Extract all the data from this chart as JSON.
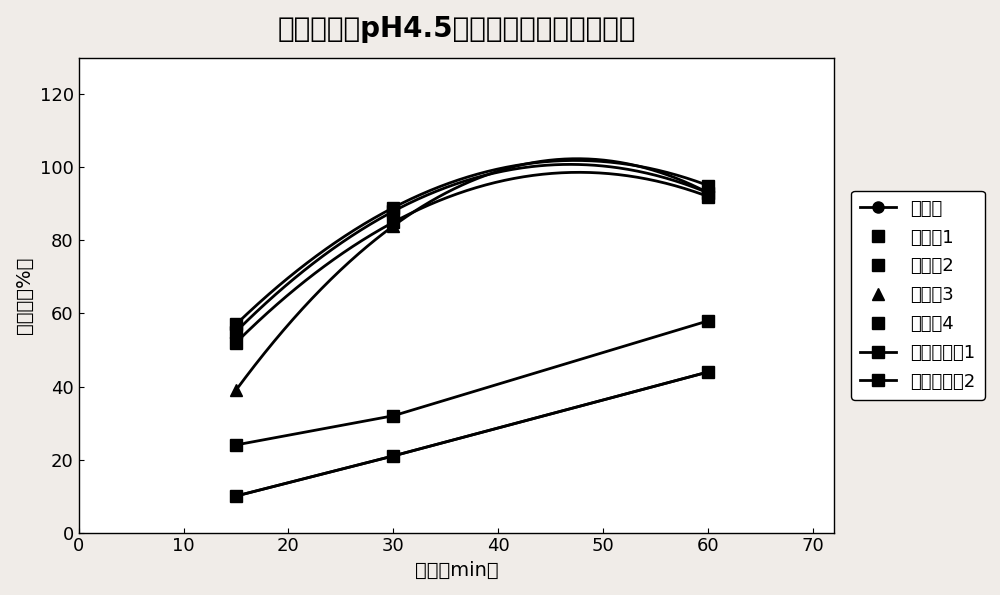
{
  "title": "各实施例在pH4.5醋酸盐介质中溶出度对比",
  "xlabel": "时间（min）",
  "ylabel": "溶出量（%）",
  "xlim": [
    0,
    72
  ],
  "ylim": [
    0,
    130
  ],
  "xticks": [
    0,
    10,
    20,
    30,
    40,
    50,
    60,
    70
  ],
  "yticks": [
    0,
    20,
    40,
    60,
    80,
    100,
    120
  ],
  "series": [
    {
      "label": "原料药",
      "x": [
        15,
        30,
        60
      ],
      "y": [
        10,
        21,
        44
      ],
      "marker": "o",
      "color": "#000000",
      "linestyle": "-"
    },
    {
      "label": "实施例1",
      "x": [
        15,
        30,
        60
      ],
      "y": [
        55,
        88,
        93
      ],
      "marker": "s",
      "color": "#000000",
      "linestyle": "-"
    },
    {
      "label": "实施例2",
      "x": [
        15,
        30,
        60
      ],
      "y": [
        52,
        85,
        92
      ],
      "marker": "s",
      "color": "#000000",
      "linestyle": "-"
    },
    {
      "label": "实施例3",
      "x": [
        15,
        30,
        60
      ],
      "y": [
        39,
        84,
        93
      ],
      "marker": "^",
      "color": "#000000",
      "linestyle": "-"
    },
    {
      "label": "实施例4",
      "x": [
        15,
        30,
        60
      ],
      "y": [
        57,
        89,
        95
      ],
      "marker": "s",
      "color": "#000000",
      "linestyle": "-"
    },
    {
      "label": "对比实施例1",
      "x": [
        15,
        30,
        60
      ],
      "y": [
        24,
        32,
        58
      ],
      "marker": "s",
      "color": "#000000",
      "linestyle": "-"
    },
    {
      "label": "对比实施例2",
      "x": [
        15,
        30,
        60
      ],
      "y": [
        10,
        21,
        44
      ],
      "marker": "s",
      "color": "#000000",
      "linestyle": "-"
    }
  ],
  "background_color": "#f0ece8",
  "plot_bg_color": "#ffffff",
  "title_fontsize": 20,
  "label_fontsize": 14,
  "tick_fontsize": 13,
  "legend_fontsize": 13,
  "linewidth": 2.0,
  "markersize": 8
}
